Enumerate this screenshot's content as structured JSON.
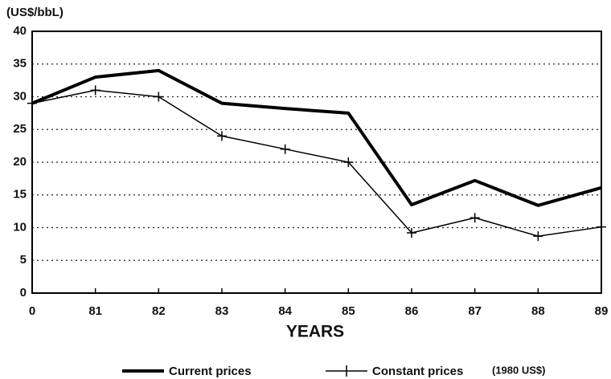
{
  "chart_data": {
    "type": "line",
    "y_axis_label": "(US$/bbL)",
    "x_axis_label": "YEARS",
    "note": "(1980 US$)",
    "categories": [
      "0",
      "81",
      "82",
      "83",
      "84",
      "85",
      "86",
      "87",
      "88",
      "89"
    ],
    "series": [
      {
        "name": "Current prices",
        "color": "#000000",
        "values": [
          29,
          33,
          34,
          29,
          28.2,
          27.5,
          13.5,
          17.2,
          13.4,
          16.1
        ]
      },
      {
        "name": "Constant prices",
        "color": "#000000",
        "values": [
          29,
          31,
          30,
          24,
          22,
          20,
          9.2,
          11.5,
          8.7,
          10.1
        ]
      }
    ],
    "ylim": [
      0,
      40
    ],
    "yticks": [
      0,
      5,
      10,
      15,
      20,
      25,
      30,
      35,
      40
    ],
    "grid": true
  }
}
